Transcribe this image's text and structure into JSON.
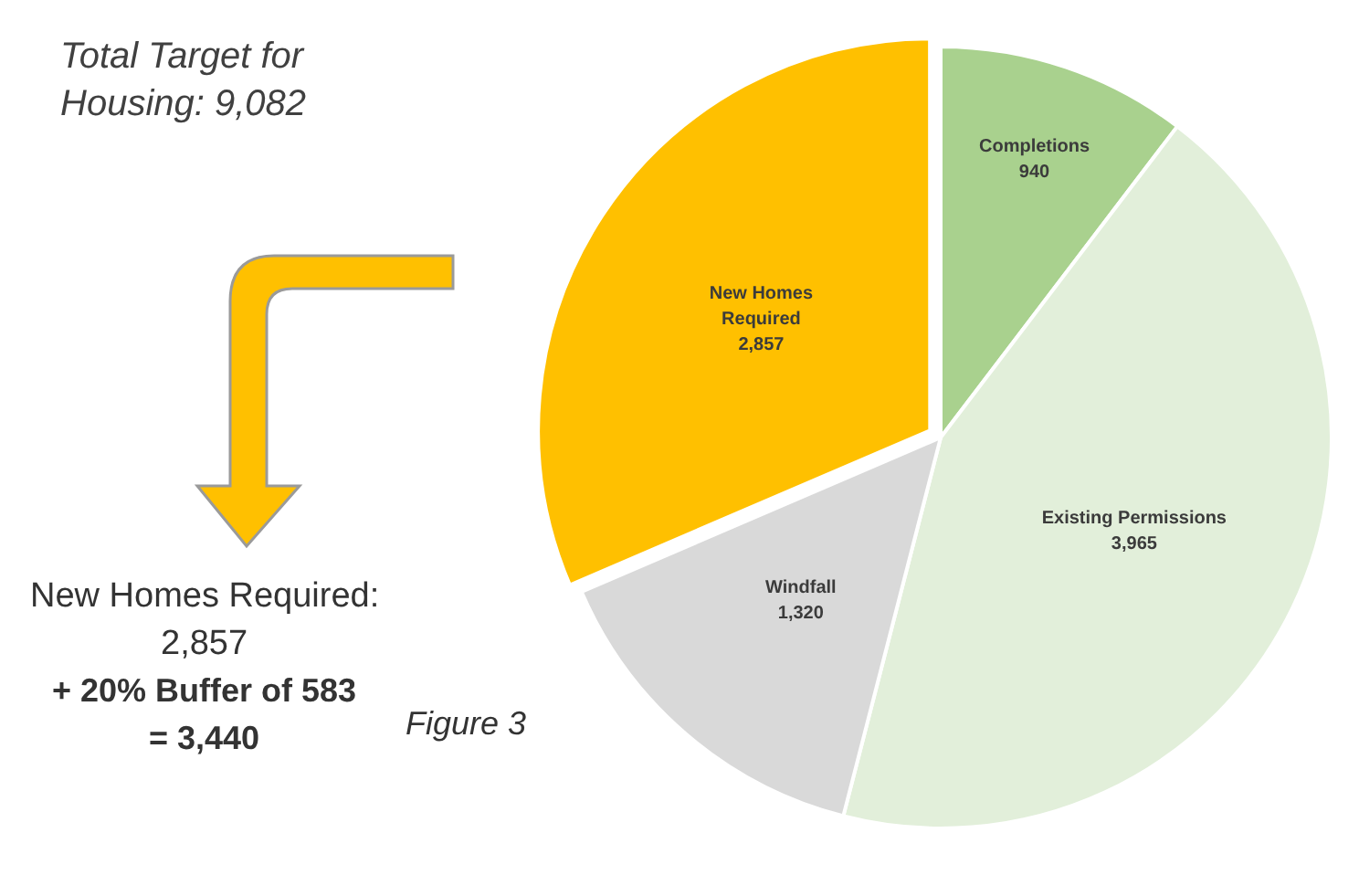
{
  "chart_data": {
    "type": "pie",
    "categories": [
      "Completions",
      "Existing Permissions",
      "Windfall",
      "New Homes Required"
    ],
    "values": [
      940,
      3965,
      1320,
      2857
    ],
    "colors": [
      "#a9d18e",
      "#e2efda",
      "#d9d9d9",
      "#ffc000"
    ],
    "value_labels": [
      "940",
      "3,965",
      "1,320",
      "2,857"
    ],
    "legend": false,
    "annotations": [
      "Total Target for Housing: 9,082",
      "New Homes Required:",
      "2,857",
      "+ 20% Buffer of 583",
      "= 3,440",
      "Figure 3"
    ]
  }
}
